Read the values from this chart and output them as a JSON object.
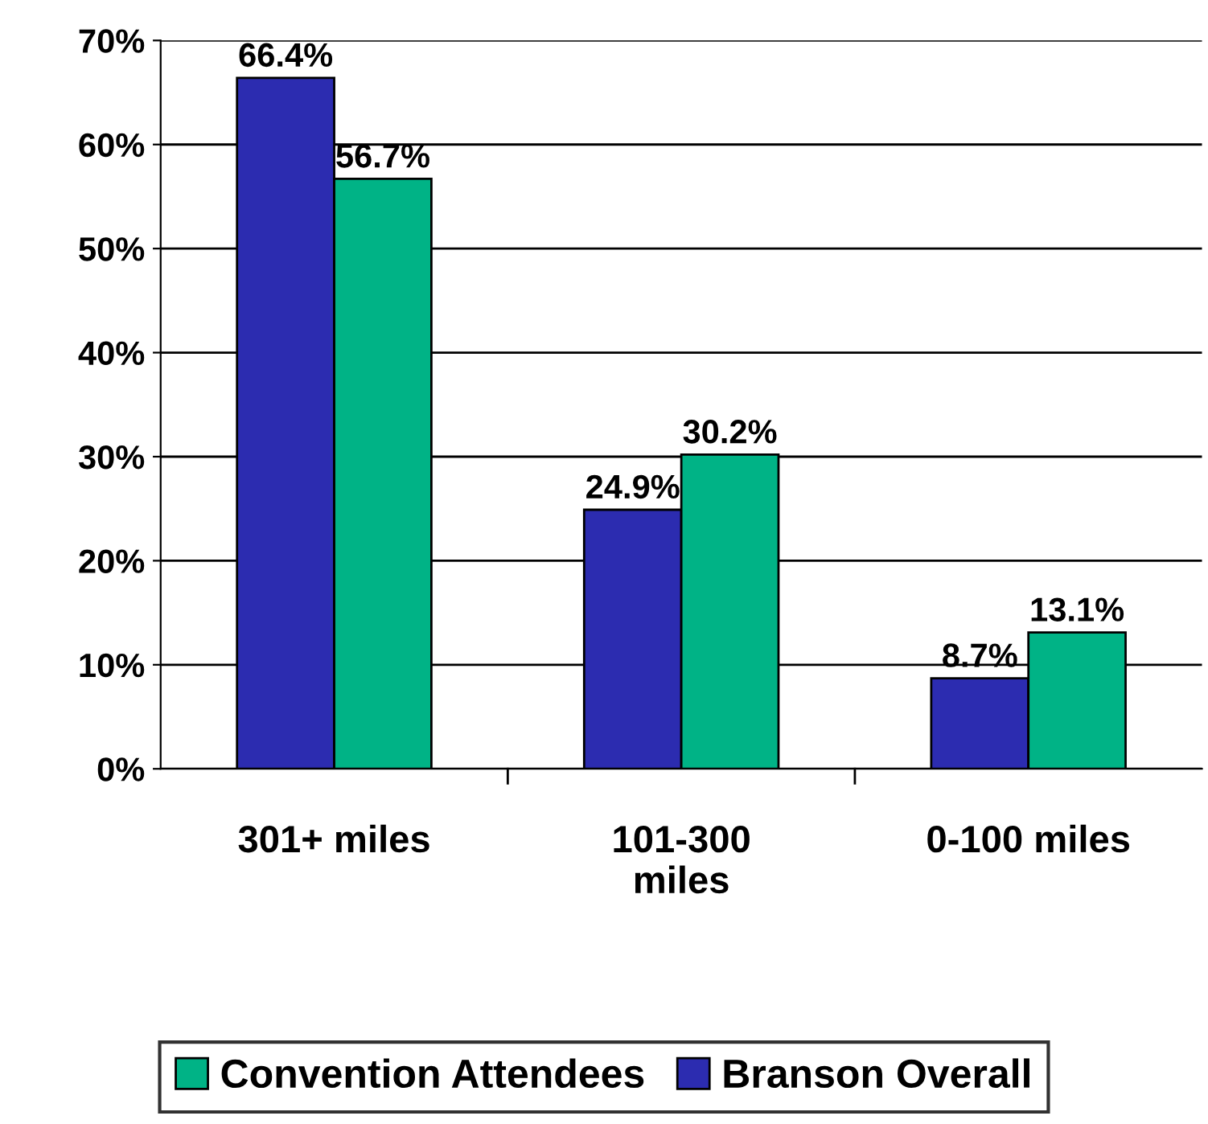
{
  "chart_data": {
    "type": "bar",
    "categories": [
      "301+ miles",
      "101-300 miles",
      "0-100 miles"
    ],
    "series": [
      {
        "name": "Branson Overall",
        "color": "#2c2cb0",
        "values": [
          66.4,
          24.9,
          8.7
        ],
        "value_labels": [
          "66.4%",
          "24.9%",
          "8.7%"
        ]
      },
      {
        "name": "Convention Attendees",
        "color": "#00b386",
        "values": [
          56.7,
          30.2,
          13.1
        ],
        "value_labels": [
          "56.7%",
          "30.2%",
          "13.1%"
        ]
      }
    ],
    "ylim": [
      0,
      70
    ],
    "yticks": [
      {
        "value": 0,
        "label": "0%"
      },
      {
        "value": 10,
        "label": "10%"
      },
      {
        "value": 20,
        "label": "20%"
      },
      {
        "value": 30,
        "label": "30%"
      },
      {
        "value": 40,
        "label": "40%"
      },
      {
        "value": 50,
        "label": "50%"
      },
      {
        "value": 60,
        "label": "60%"
      },
      {
        "value": 70,
        "label": "70%"
      }
    ],
    "grid": "y",
    "legend": "bottom"
  }
}
